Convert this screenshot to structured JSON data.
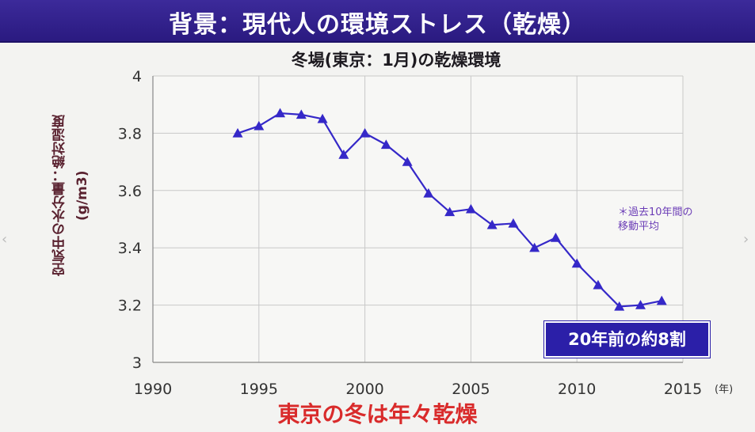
{
  "header": {
    "title": "背景：現代人の環境ストレス（乾燥）"
  },
  "chart_data": {
    "type": "line",
    "title": "冬場(東京：1月)の乾燥環境",
    "ylabel_lines": [
      "空気中の水分量：絶対湿度",
      "(g/m3)"
    ],
    "x_unit": "(年)",
    "xlim": [
      1990,
      2015
    ],
    "ylim": [
      3.0,
      4.0
    ],
    "x_ticks": [
      1990,
      1995,
      2000,
      2005,
      2010,
      2015
    ],
    "y_ticks": [
      3,
      3.2,
      3.4,
      3.6,
      3.8,
      4
    ],
    "y_tick_labels": [
      "3",
      "3.2",
      "3.4",
      "3.6",
      "3.8",
      "4"
    ],
    "grid": true,
    "marker": "triangle",
    "series": [
      {
        "x": [
          1994,
          1995,
          1996,
          1997,
          1998,
          1999,
          2000,
          2001,
          2002,
          2003,
          2004,
          2005,
          2006,
          2007,
          2008,
          2009,
          2010,
          2011,
          2012,
          2013,
          2014
        ],
        "values": [
          3.8,
          3.825,
          3.87,
          3.865,
          3.85,
          3.725,
          3.8,
          3.76,
          3.7,
          3.59,
          3.525,
          3.535,
          3.48,
          3.485,
          3.4,
          3.435,
          3.345,
          3.27,
          3.195,
          3.2,
          3.215
        ],
        "color": "#3528c8"
      }
    ],
    "annotations": [
      {
        "id": "note",
        "lines": [
          "＊過去10年間の",
          "移動平均"
        ]
      },
      {
        "id": "highlight",
        "text": "20年前の約8割"
      }
    ]
  },
  "footer": {
    "text": "東京の冬は年々乾燥"
  },
  "colors": {
    "banner": "#2f2090",
    "line": "#3528c8",
    "footer_text": "#d92b2b",
    "note_text": "#6b3db6"
  }
}
